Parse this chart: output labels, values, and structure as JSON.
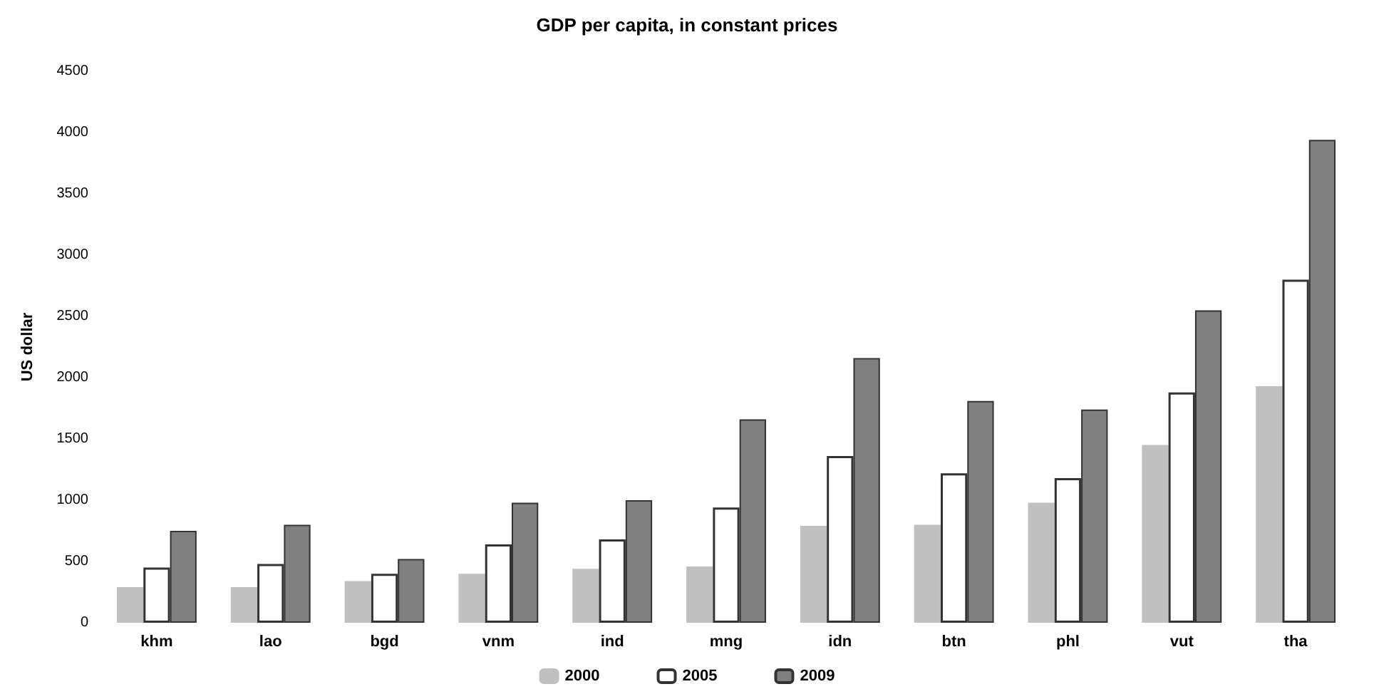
{
  "chart_data": {
    "type": "bar",
    "title": "GDP per capita, in constant prices",
    "ylabel": "US dollar",
    "categories": [
      "khm",
      "lao",
      "bgd",
      "vnm",
      "ind",
      "mng",
      "idn",
      "btn",
      "phl",
      "vut",
      "tha"
    ],
    "series": [
      {
        "name": "2000",
        "color": "#c0c0c0",
        "values": [
          290,
          290,
          340,
          400,
          440,
          460,
          790,
          800,
          980,
          1450,
          1930
        ]
      },
      {
        "name": "2005",
        "color": "#ffffff",
        "values": [
          450,
          480,
          400,
          640,
          680,
          940,
          1360,
          1220,
          1180,
          1880,
          2800
        ]
      },
      {
        "name": "2009",
        "color": "#808080",
        "values": [
          750,
          800,
          520,
          980,
          1000,
          1660,
          2160,
          1810,
          1740,
          2550,
          3940
        ]
      }
    ],
    "ylim": [
      0,
      4500
    ],
    "yticks": [
      0,
      500,
      1000,
      1500,
      2000,
      2500,
      3000,
      3500,
      4000,
      4500
    ],
    "grid": false,
    "legend": "bottom"
  }
}
